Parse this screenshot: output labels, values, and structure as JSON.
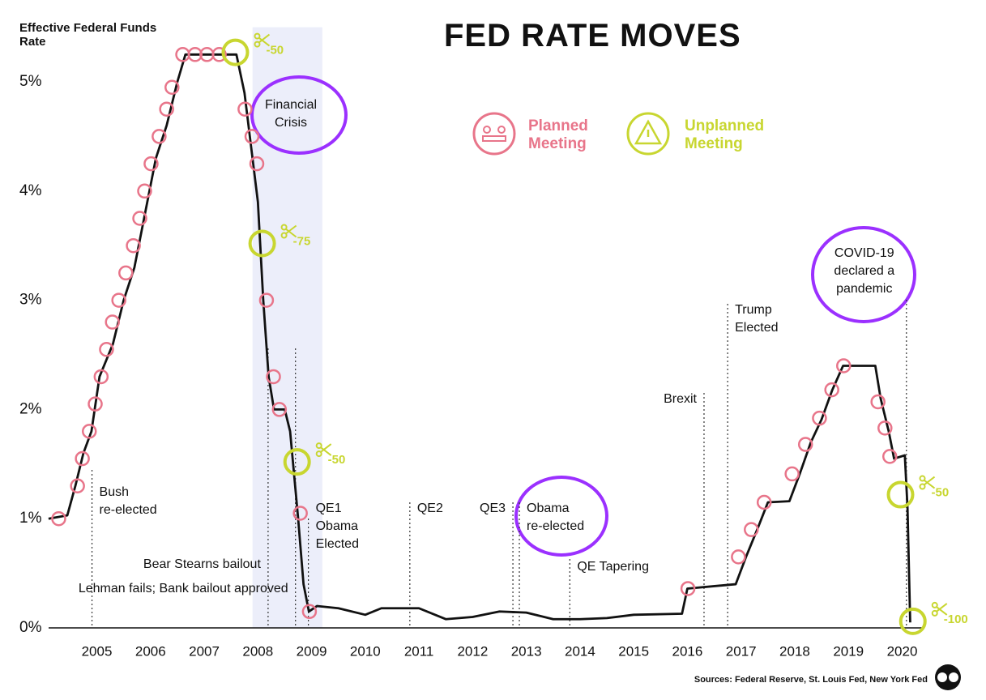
{
  "chart_data": {
    "type": "line",
    "title": "FED RATE MOVES",
    "y_label": "Effective Federal Funds Rate",
    "source": "Sources: Federal Reserve, St. Louis Fed, New York Fed",
    "xlim": [
      2003.8,
      2020.4
    ],
    "xticks": [
      2005,
      2006,
      2007,
      2008,
      2009,
      2010,
      2011,
      2012,
      2013,
      2014,
      2015,
      2016,
      2017,
      2018,
      2019,
      2020
    ],
    "ylim": [
      0,
      5.5
    ],
    "yticks": [
      {
        "value": 0,
        "label": "0%"
      },
      {
        "value": 1,
        "label": "1%"
      },
      {
        "value": 2,
        "label": "2%"
      },
      {
        "value": 3,
        "label": "3%"
      },
      {
        "value": 4,
        "label": "4%"
      },
      {
        "value": 5,
        "label": "5%"
      }
    ],
    "grid": false,
    "crisis_shade": [
      2007.9,
      2009.2
    ],
    "crisis_label": [
      "Financial",
      "Crisis"
    ],
    "series": [
      {
        "name": "Effective Federal Funds Rate",
        "type": "line",
        "color": "#111111",
        "x": [
          2004.1,
          2004.45,
          2004.6,
          2004.75,
          2004.9,
          2005.05,
          2005.3,
          2005.5,
          2005.7,
          2005.9,
          2006.1,
          2006.3,
          2006.5,
          2006.65,
          2007.6,
          2007.75,
          2007.9,
          2008.0,
          2008.1,
          2008.2,
          2008.3,
          2008.5,
          2008.6,
          2008.75,
          2008.85,
          2008.95,
          2009.1,
          2009.5,
          2010.0,
          2010.3,
          2011.0,
          2011.5,
          2012.0,
          2012.5,
          2013.0,
          2013.5,
          2014.0,
          2014.5,
          2015.0,
          2015.9,
          2016.0,
          2016.9,
          2017.1,
          2017.3,
          2017.5,
          2017.9,
          2018.1,
          2018.3,
          2018.5,
          2018.7,
          2018.9,
          2019.5,
          2019.6,
          2019.75,
          2019.85,
          2020.05,
          2020.1,
          2020.15
        ],
        "values": [
          1.0,
          1.03,
          1.3,
          1.6,
          1.8,
          2.3,
          2.6,
          3.0,
          3.3,
          3.8,
          4.3,
          4.6,
          5.0,
          5.25,
          5.25,
          4.9,
          4.3,
          3.9,
          3.0,
          2.3,
          2.0,
          2.0,
          1.8,
          1.0,
          0.4,
          0.15,
          0.2,
          0.18,
          0.12,
          0.18,
          0.18,
          0.08,
          0.1,
          0.15,
          0.14,
          0.08,
          0.08,
          0.09,
          0.12,
          0.13,
          0.36,
          0.4,
          0.66,
          0.9,
          1.15,
          1.16,
          1.42,
          1.7,
          1.91,
          2.18,
          2.4,
          2.4,
          2.1,
          1.8,
          1.55,
          1.58,
          1.1,
          0.05
        ]
      },
      {
        "name": "Planned Meeting",
        "type": "scatter",
        "color": "#e8758a",
        "x": [
          2004.29,
          2004.64,
          2004.73,
          2004.86,
          2004.97,
          2005.08,
          2005.18,
          2005.29,
          2005.41,
          2005.54,
          2005.68,
          2005.8,
          2005.89,
          2006.01,
          2006.16,
          2006.3,
          2006.4,
          2006.6,
          2006.83,
          2007.05,
          2007.28,
          2007.76,
          2007.89,
          2007.98,
          2008.16,
          2008.29,
          2008.4,
          2008.79,
          2008.96,
          2016.01,
          2016.95,
          2017.19,
          2017.43,
          2017.95,
          2018.2,
          2018.46,
          2018.69,
          2018.91,
          2019.55,
          2019.68,
          2019.77
        ],
        "values": [
          1.0,
          1.3,
          1.55,
          1.8,
          2.05,
          2.3,
          2.55,
          2.8,
          3.0,
          3.25,
          3.5,
          3.75,
          4.0,
          4.25,
          4.5,
          4.75,
          4.95,
          5.25,
          5.25,
          5.25,
          5.25,
          4.75,
          4.5,
          4.25,
          3.0,
          2.3,
          2.0,
          1.05,
          0.15,
          0.36,
          0.65,
          0.9,
          1.15,
          1.41,
          1.68,
          1.92,
          2.18,
          2.4,
          2.07,
          1.83,
          1.57
        ]
      },
      {
        "name": "Unplanned Meeting",
        "type": "scatter",
        "color": "#c8d630",
        "x": [
          2007.58,
          2008.08,
          2008.73,
          2019.97,
          2020.2
        ],
        "values": [
          5.27,
          3.52,
          1.52,
          1.22,
          0.06
        ],
        "cuts": [
          -50,
          -75,
          -50,
          -50,
          -100
        ]
      }
    ],
    "annotations": [
      {
        "lines": [
          "Bush",
          "re-elected"
        ],
        "x": 2004.91
      },
      {
        "lines": [
          "Bear Stearns bailout"
        ],
        "x": 2008.19
      },
      {
        "lines": [
          "Lehman fails; Bank bailout approved"
        ],
        "x": 2008.7
      },
      {
        "lines": [
          "QE1",
          "Obama",
          "Elected"
        ],
        "x": 2008.94
      },
      {
        "lines": [
          "QE2"
        ],
        "x": 2010.83
      },
      {
        "lines": [
          "QE3"
        ],
        "x": 2012.75
      },
      {
        "lines": [
          "Obama",
          "re-elected"
        ],
        "x": 2012.87
      },
      {
        "lines": [
          "QE Tapering"
        ],
        "x": 2013.81
      },
      {
        "lines": [
          "Brexit"
        ],
        "x": 2016.31
      },
      {
        "lines": [
          "Trump",
          "Elected"
        ],
        "x": 2016.75
      },
      {
        "lines": [
          "COVID-19",
          "declared a",
          "pandemic"
        ],
        "x": 2020.08
      }
    ]
  }
}
